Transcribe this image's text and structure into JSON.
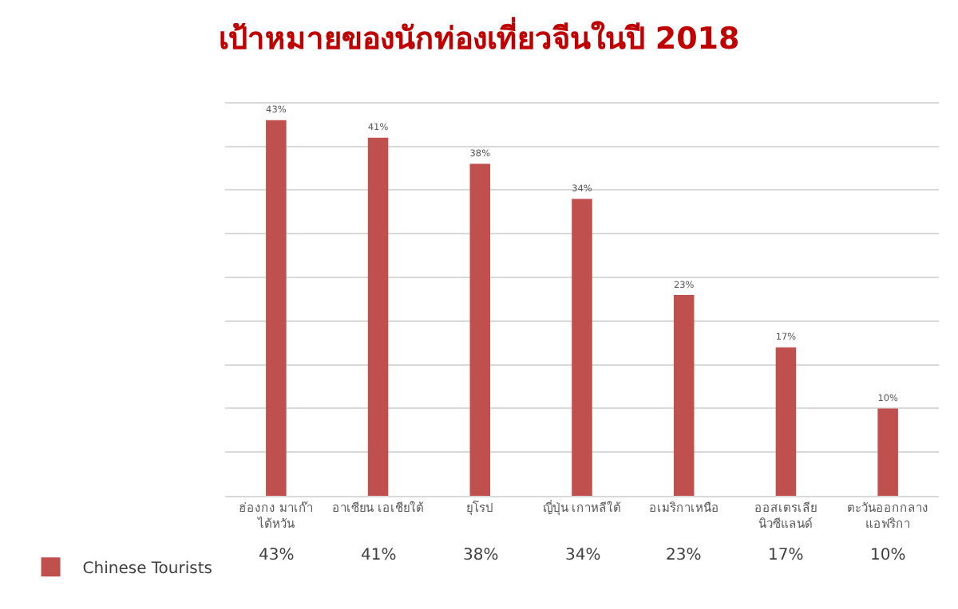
{
  "chart_data": {
    "type": "bar",
    "title": "เป้าหมายของนักท่องเที่ยวจีนในปี 2018",
    "categories": [
      "ฮ่องกง มาเก๊า ไต้หวัน",
      "อาเซียน เอเชียใต้",
      "ยุโรป",
      "ญี่ปุ่น เกาหลีใต้",
      "อเมริกาเหนือ",
      "ออสเตรเลีย นิวซีแลนด์",
      "ตะวันออกกลาง แอฟริกา"
    ],
    "series": [
      {
        "name": "Chinese Tourists",
        "color": "#c0504d",
        "values": [
          43,
          41,
          38,
          34,
          23,
          17,
          10
        ],
        "value_labels": [
          "43%",
          "41%",
          "38%",
          "34%",
          "23%",
          "17%",
          "10%"
        ]
      }
    ],
    "tick_labels": "x",
    "grid": "y",
    "legend": "bottom left"
  }
}
